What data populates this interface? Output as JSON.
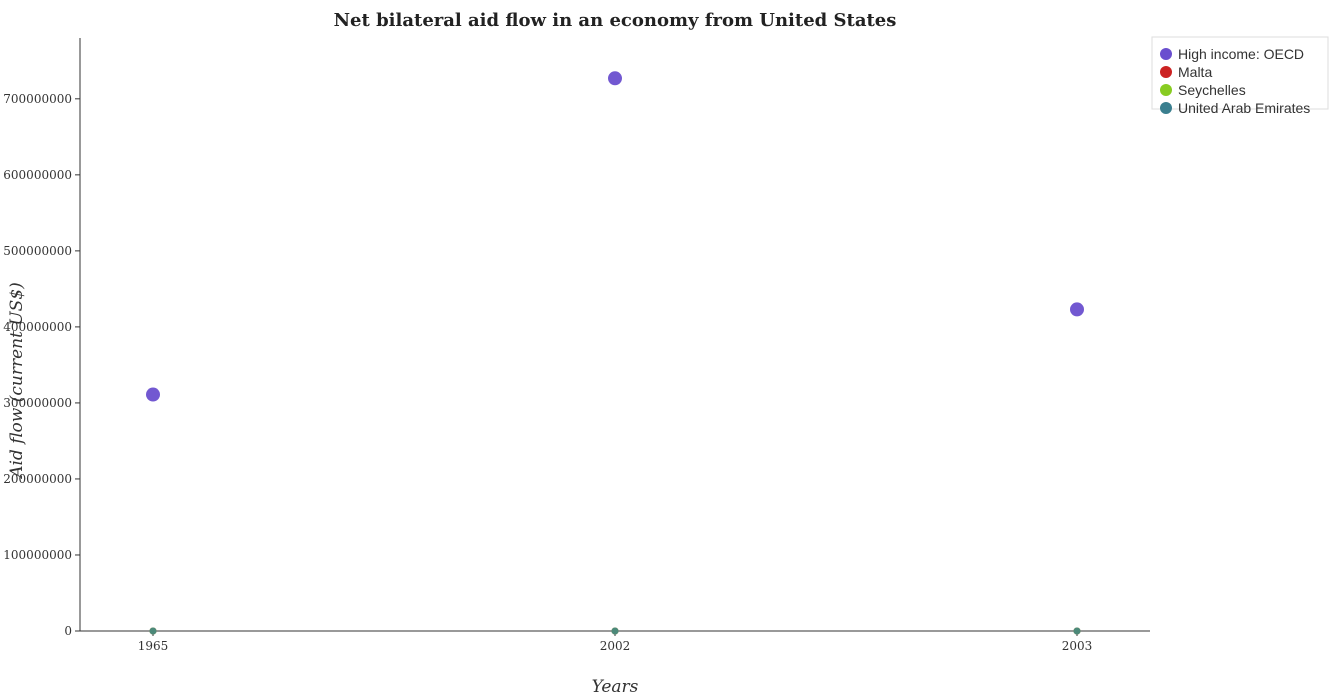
{
  "chart_data": {
    "type": "scatter",
    "title": "Net bilateral aid flow in an economy from United States",
    "xlabel": "Years",
    "ylabel": "Aid flow (current US$)",
    "categories": [
      "1965",
      "2002",
      "2003"
    ],
    "ylim": [
      0,
      780000000
    ],
    "yticks": [
      0,
      100000000,
      200000000,
      300000000,
      400000000,
      500000000,
      600000000,
      700000000
    ],
    "ytick_labels": [
      "0",
      "100000000",
      "200000000",
      "300000000",
      "400000000",
      "500000000",
      "600000000",
      "700000000"
    ],
    "grid": false,
    "legend_position": "top-right",
    "series": [
      {
        "name": "High income: OECD",
        "color": "#6a4fcf",
        "values": [
          311000000,
          727000000,
          423000000
        ]
      },
      {
        "name": "Malta",
        "color": "#cc2222",
        "values": [
          0,
          0,
          0
        ]
      },
      {
        "name": "Seychelles",
        "color": "#88cc22",
        "values": [
          0,
          0,
          0
        ]
      },
      {
        "name": "United Arab Emirates",
        "color": "#3a7f8f",
        "values": [
          0,
          0,
          0
        ]
      }
    ]
  }
}
